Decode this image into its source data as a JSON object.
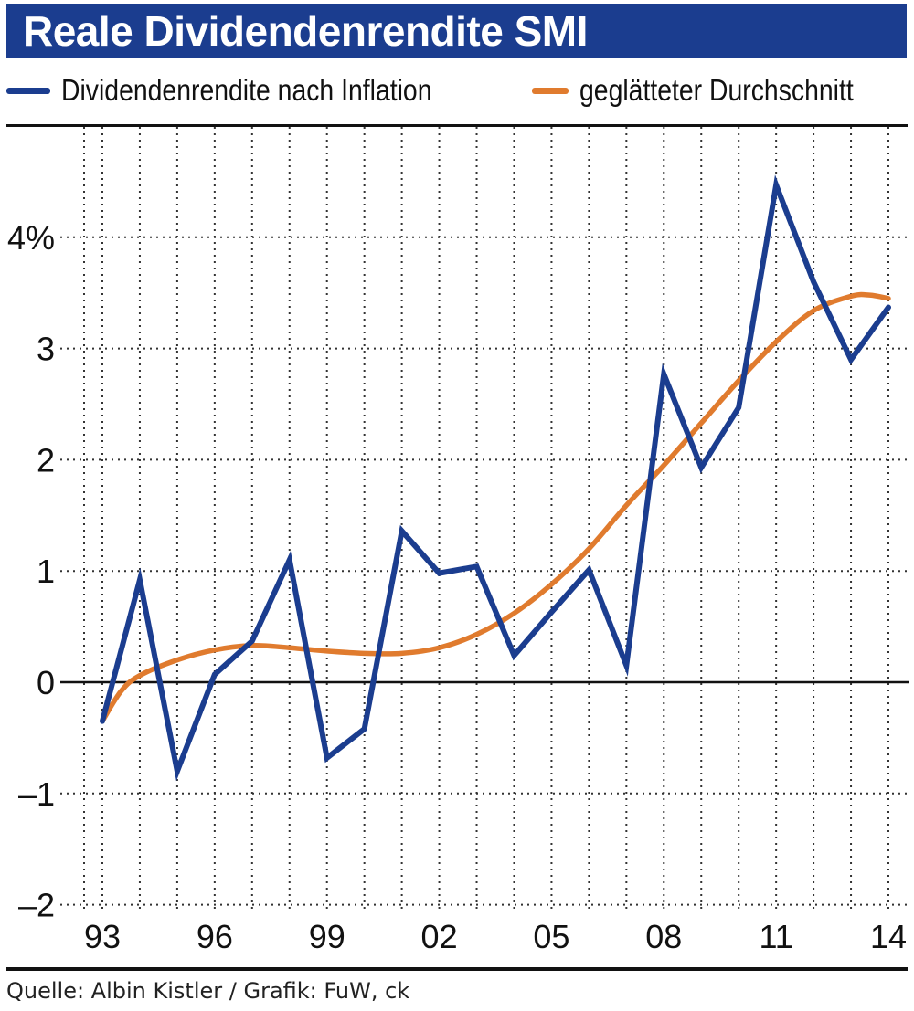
{
  "title": "Reale Dividendenrendite SMI",
  "source": "Quelle: Albin Kistler / Grafik: FuW, ck",
  "colors": {
    "title_bg": "#1b3d8f",
    "series_blue": "#1b3d8f",
    "series_orange": "#e07b2e"
  },
  "legend": [
    {
      "label": "Dividendenrendite nach Inflation",
      "color": "#1b3d8f"
    },
    {
      "label": "geglätteter Durchschnitt",
      "color": "#e07b2e"
    }
  ],
  "chart_data": {
    "type": "line",
    "title": "Reale Dividendenrendite SMI",
    "xlabel": "",
    "ylabel": "",
    "ylim": [
      -2,
      5
    ],
    "xlim": [
      1993,
      2014
    ],
    "grid": true,
    "y_ticks": [
      {
        "value": -2,
        "label": "–2"
      },
      {
        "value": -1,
        "label": "–1"
      },
      {
        "value": 0,
        "label": "0"
      },
      {
        "value": 1,
        "label": "1"
      },
      {
        "value": 2,
        "label": "2"
      },
      {
        "value": 3,
        "label": "3"
      },
      {
        "value": 4,
        "label": "4%"
      }
    ],
    "x_ticks": [
      {
        "value": 1993,
        "label": "93"
      },
      {
        "value": 1996,
        "label": "96"
      },
      {
        "value": 1999,
        "label": "99"
      },
      {
        "value": 2002,
        "label": "02"
      },
      {
        "value": 2005,
        "label": "05"
      },
      {
        "value": 2008,
        "label": "08"
      },
      {
        "value": 2011,
        "label": "11"
      },
      {
        "value": 2014,
        "label": "14"
      }
    ],
    "series": [
      {
        "name": "Dividendenrendite nach Inflation",
        "color": "#1b3d8f",
        "x": [
          1993,
          1994,
          1995,
          1996,
          1997,
          1998,
          1999,
          2000,
          2001,
          2002,
          2003,
          2004,
          2005,
          2006,
          2007,
          2008,
          2009,
          2010,
          2011,
          2012,
          2013,
          2014
        ],
        "values": [
          -0.35,
          0.92,
          -0.8,
          0.07,
          0.37,
          1.1,
          -0.68,
          -0.42,
          1.36,
          0.98,
          1.04,
          0.24,
          0.63,
          1.01,
          0.15,
          2.77,
          1.93,
          2.47,
          4.47,
          3.6,
          2.9,
          3.37
        ]
      },
      {
        "name": "geglätteter Durchschnitt",
        "color": "#e07b2e",
        "x": [
          1993,
          1993.5,
          1994,
          1995,
          1996,
          1997,
          1998,
          1999,
          2000,
          2001,
          2002,
          2003,
          2004,
          2005,
          2006,
          2007,
          2008,
          2009,
          2010,
          2011,
          2012,
          2013,
          2013.5,
          2014
        ],
        "values": [
          -0.35,
          -0.08,
          0.06,
          0.2,
          0.29,
          0.33,
          0.31,
          0.28,
          0.26,
          0.26,
          0.31,
          0.43,
          0.62,
          0.88,
          1.2,
          1.59,
          1.95,
          2.33,
          2.71,
          3.06,
          3.34,
          3.47,
          3.48,
          3.45
        ]
      }
    ]
  }
}
